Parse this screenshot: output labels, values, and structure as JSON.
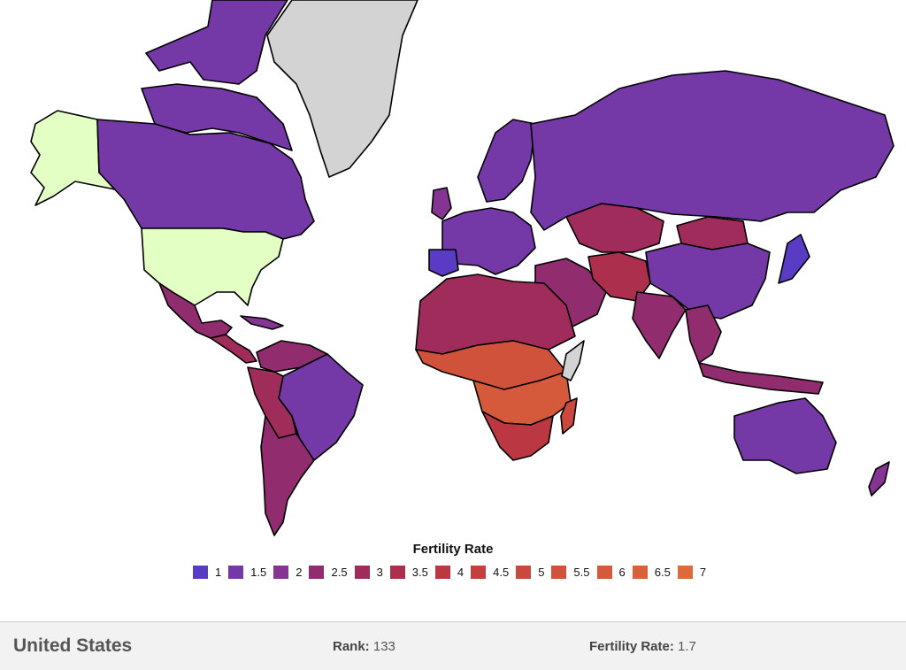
{
  "map": {
    "colors": {
      "ocean": "#ffffff",
      "no_data": "#d3d3d3",
      "selected": "#e4ffc4",
      "border": "#000000"
    }
  },
  "legend": {
    "title": "Fertility Rate",
    "items": [
      {
        "label": "1",
        "color": "#5a3cc4"
      },
      {
        "label": "1.5",
        "color": "#7438a7"
      },
      {
        "label": "2",
        "color": "#853493"
      },
      {
        "label": "2.5",
        "color": "#912d6e"
      },
      {
        "label": "3",
        "color": "#a02c5c"
      },
      {
        "label": "3.5",
        "color": "#ac2f4d"
      },
      {
        "label": "4",
        "color": "#bb3842"
      },
      {
        "label": "4.5",
        "color": "#c43f3f"
      },
      {
        "label": "5",
        "color": "#ca483d"
      },
      {
        "label": "5.5",
        "color": "#d1523b"
      },
      {
        "label": "6",
        "color": "#d45a3b"
      },
      {
        "label": "6.5",
        "color": "#d8613a"
      },
      {
        "label": "7",
        "color": "#dc6a3a"
      }
    ]
  },
  "selection": {
    "country": "United States",
    "rank_label": "Rank:",
    "rank": "133",
    "rate_label": "Fertility Rate:",
    "rate": "1.7"
  }
}
